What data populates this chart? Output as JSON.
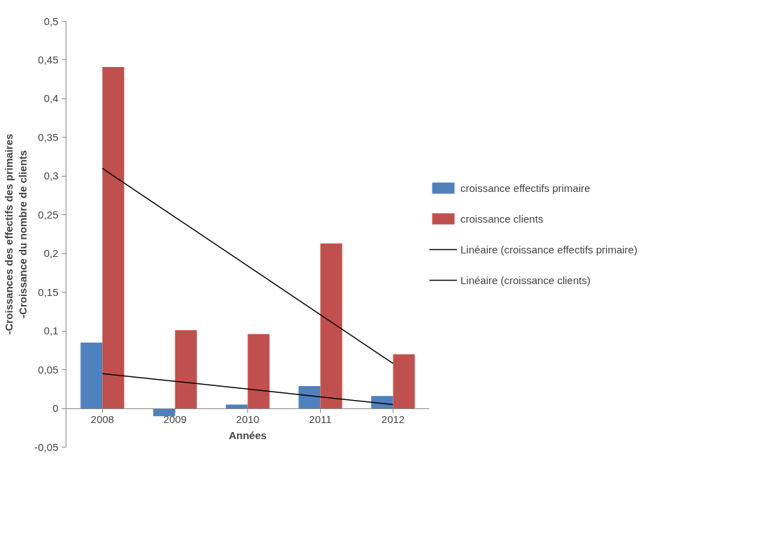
{
  "chart_data": {
    "type": "bar",
    "xlabel": "Années",
    "ylabel": "-Croissances des effectifs des primaires\n-Croissance du nombre de clients",
    "categories": [
      "2008",
      "2009",
      "2010",
      "2011",
      "2012"
    ],
    "series": [
      {
        "name": "croissance effectifs primaire",
        "color": "#4f81bd",
        "values": [
          0.085,
          -0.01,
          0.005,
          0.029,
          0.016
        ]
      },
      {
        "name": "croissance clients",
        "color": "#c0504d",
        "values": [
          0.441,
          0.101,
          0.096,
          0.213,
          0.07
        ]
      },
      {
        "name": "Linéaire (croissance effectifs primaire)",
        "type": "line",
        "color": "#000000",
        "values": [
          0.045,
          0.035,
          0.025,
          0.015,
          0.005
        ]
      },
      {
        "name": "Linéaire (croissance clients)",
        "type": "line",
        "color": "#000000",
        "values": [
          0.31,
          0.247,
          0.184,
          0.121,
          0.058
        ]
      }
    ],
    "ylim": [
      -0.05,
      0.5
    ],
    "yticks": [
      {
        "value": -0.05,
        "label": "-0,05"
      },
      {
        "value": 0,
        "label": "0"
      },
      {
        "value": 0.05,
        "label": "0,05"
      },
      {
        "value": 0.1,
        "label": "0,1"
      },
      {
        "value": 0.15,
        "label": "0,15"
      },
      {
        "value": 0.2,
        "label": "0,2"
      },
      {
        "value": 0.25,
        "label": "0,25"
      },
      {
        "value": 0.3,
        "label": "0,3"
      },
      {
        "value": 0.35,
        "label": "0,35"
      },
      {
        "value": 0.4,
        "label": "0,4"
      },
      {
        "value": 0.45,
        "label": "0,45"
      },
      {
        "value": 0.5,
        "label": "0,5"
      }
    ],
    "grid": false,
    "legend": "right",
    "marker": "none",
    "line_style": "solid"
  }
}
